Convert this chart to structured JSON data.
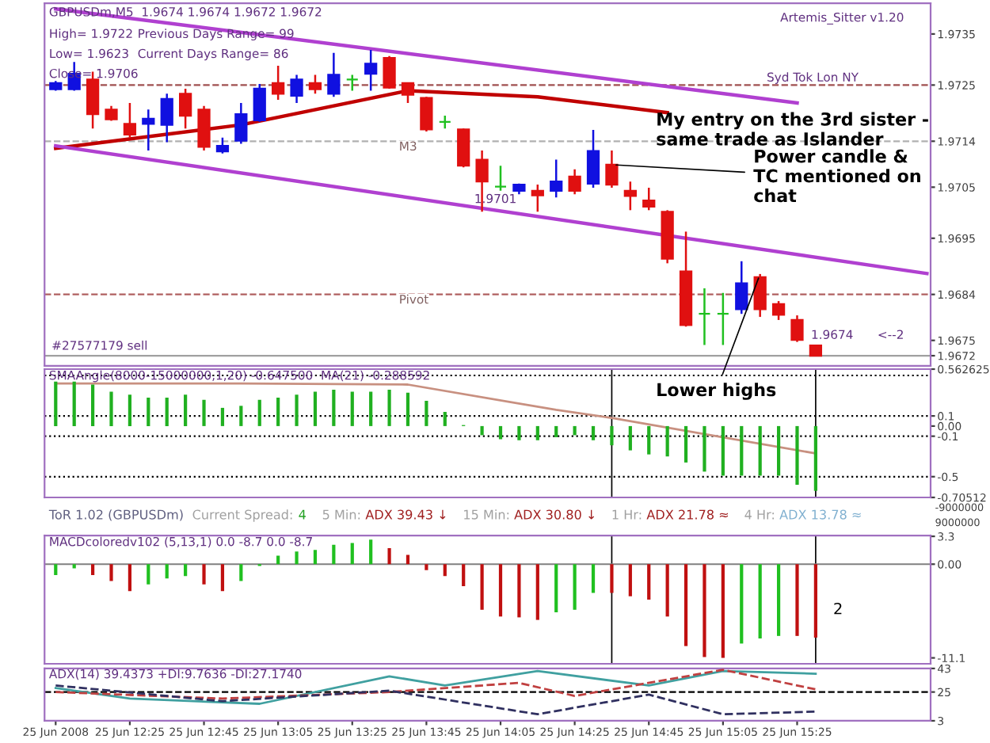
{
  "chart_data": [
    {
      "type": "candlestick",
      "title": "GBPUSDm,M5  1.9674 1.9674 1.9672 1.9672",
      "x": [
        "2008-06-25T12:05",
        "2008-06-25T12:10",
        "2008-06-25T12:15",
        "2008-06-25T12:20",
        "2008-06-25T12:25",
        "2008-06-25T12:30",
        "2008-06-25T12:35",
        "2008-06-25T12:40",
        "2008-06-25T12:45",
        "2008-06-25T12:50",
        "2008-06-25T12:55",
        "2008-06-25T13:00",
        "2008-06-25T13:05",
        "2008-06-25T13:10",
        "2008-06-25T13:15",
        "2008-06-25T13:20",
        "2008-06-25T13:25",
        "2008-06-25T13:30",
        "2008-06-25T13:35",
        "2008-06-25T13:40",
        "2008-06-25T13:45",
        "2008-06-25T13:50",
        "2008-06-25T13:55",
        "2008-06-25T14:00",
        "2008-06-25T14:05",
        "2008-06-25T14:10",
        "2008-06-25T14:15",
        "2008-06-25T14:20",
        "2008-06-25T14:25",
        "2008-06-25T14:30",
        "2008-06-25T14:35",
        "2008-06-25T14:40",
        "2008-06-25T14:45",
        "2008-06-25T14:50",
        "2008-06-25T14:55",
        "2008-06-25T15:00",
        "2008-06-25T15:05",
        "2008-06-25T15:10",
        "2008-06-25T15:15",
        "2008-06-25T15:20",
        "2008-06-25T15:25",
        "2008-06-25T15:30"
      ],
      "ohlc": [
        [
          1.97242,
          1.97258,
          1.97239,
          1.97254
        ],
        [
          1.97242,
          1.97295,
          1.97239,
          1.97272
        ],
        [
          1.97261,
          1.97276,
          1.97165,
          1.97193
        ],
        [
          1.97202,
          1.97209,
          1.9718,
          1.97183
        ],
        [
          1.97174,
          1.97215,
          1.97147,
          1.97153
        ],
        [
          1.97174,
          1.97202,
          1.97122,
          1.97184
        ],
        [
          1.97172,
          1.97233,
          1.97138,
          1.97223
        ],
        [
          1.97233,
          1.97243,
          1.97165,
          1.9719
        ],
        [
          1.97202,
          1.97209,
          1.97122,
          1.97129
        ],
        [
          1.9712,
          1.97147,
          1.97116,
          1.97131
        ],
        [
          1.97141,
          1.97215,
          1.97135,
          1.97193
        ],
        [
          1.97181,
          1.97252,
          1.97178,
          1.97243
        ],
        [
          1.97254,
          1.97288,
          1.97221,
          1.97233
        ],
        [
          1.97229,
          1.9727,
          1.97215,
          1.97261
        ],
        [
          1.97254,
          1.9727,
          1.97233,
          1.97242
        ],
        [
          1.97233,
          1.97313,
          1.97227,
          1.9727
        ],
        [
          1.97261,
          1.9727,
          1.97239,
          1.97261
        ],
        [
          1.97272,
          1.97319,
          1.97239,
          1.97292
        ],
        [
          1.97303,
          1.97307,
          1.97243,
          1.97245
        ],
        [
          1.97254,
          1.97254,
          1.97215,
          1.97231
        ],
        [
          1.97225,
          1.97227,
          1.97159,
          1.97163
        ],
        [
          1.97178,
          1.9719,
          1.97165,
          1.97178
        ],
        [
          1.97163,
          1.97165,
          1.97089,
          1.97092
        ],
        [
          1.97104,
          1.97122,
          1.97002,
          1.97061
        ],
        [
          1.97051,
          1.97092,
          1.97043,
          1.97051
        ],
        [
          1.97043,
          1.97057,
          1.97036,
          1.97055
        ],
        [
          1.97043,
          1.97055,
          1.97002,
          1.97034
        ],
        [
          1.97043,
          1.97104,
          1.9703,
          1.97061
        ],
        [
          1.97071,
          1.97085,
          1.97036,
          1.97043
        ],
        [
          1.97057,
          1.97162,
          1.97049,
          1.97121
        ],
        [
          1.97094,
          1.97122,
          1.97049,
          1.97055
        ],
        [
          1.97043,
          1.97061,
          1.97005,
          1.97033
        ],
        [
          1.97024,
          1.97049,
          1.97005,
          1.97012
        ],
        [
          1.97002,
          1.97005,
          1.96901,
          1.9691
        ],
        [
          1.96885,
          1.96963,
          1.96777,
          1.9678
        ],
        [
          1.96802,
          1.96852,
          1.96741,
          1.96802
        ],
        [
          1.96802,
          1.96843,
          1.96741,
          1.96802
        ],
        [
          1.96811,
          1.96905,
          1.96802,
          1.96862
        ],
        [
          1.96874,
          1.9688,
          1.96796,
          1.96811
        ],
        [
          1.96821,
          1.96827,
          1.9679,
          1.968
        ],
        [
          1.9679,
          1.96799,
          1.96747,
          1.96751
        ],
        [
          1.9674,
          1.9674,
          1.9672,
          1.9672
        ]
      ],
      "colors": [
        "#1010e0",
        "#1010e0",
        "#e01010",
        "#e01010",
        "#e01010",
        "#1010e0",
        "#1010e0",
        "#e01010",
        "#e01010",
        "#1010e0",
        "#1010e0",
        "#1010e0",
        "#e01010",
        "#1010e0",
        "#e01010",
        "#1010e0",
        "#20c020",
        "#1010e0",
        "#e01010",
        "#e01010",
        "#e01010",
        "#20c020",
        "#e01010",
        "#e01010",
        "#20c020",
        "#1010e0",
        "#e01010",
        "#1010e0",
        "#e01010",
        "#1010e0",
        "#e01010",
        "#e01010",
        "#e01010",
        "#e01010",
        "#e01010",
        "#20c020",
        "#20c020",
        "#1010e0",
        "#e01010",
        "#e01010",
        "#e01010",
        "#e01010"
      ],
      "series": [
        {
          "type": "line",
          "color": "#c00000",
          "x": [
            "2008-06-25T12:05",
            "2008-06-25T12:55",
            "2008-06-25T13:40",
            "2008-06-25T14:15",
            "2008-06-25T14:50"
          ],
          "values": [
            1.97126,
            1.97172,
            1.97239,
            1.97227,
            1.97196
          ]
        },
        {
          "type": "line",
          "color": "#b040d0",
          "x": [
            "2008-06-25T12:05",
            "2008-06-25T15:25"
          ],
          "values": [
            1.97399,
            1.97215
          ]
        },
        {
          "type": "line",
          "color": "#b040d0",
          "x": [
            "2008-06-25T12:05",
            "2008-06-25T16:00"
          ],
          "values": [
            1.97131,
            1.96881
          ]
        }
      ],
      "ref_lines": [
        {
          "axis": "y",
          "value": 1.9725,
          "label": null,
          "color": "#a05050",
          "line_style": "dashed"
        },
        {
          "axis": "y",
          "value": 1.9714,
          "label": "M3",
          "color": "#b0b0b0",
          "line_style": "dashed"
        },
        {
          "axis": "y",
          "value": 1.9684,
          "label": "Pivot",
          "color": "#b06060",
          "line_style": "dashed"
        },
        {
          "axis": "y",
          "value": 1.9672,
          "label": null,
          "color": "#a0a0a0",
          "line_style": "solid"
        }
      ],
      "annotations": [
        "High= 1.9722",
        "Previous Days Range= 99",
        "Low= 1.9623",
        "Current Days Range= 86",
        "Close= 1.9706",
        "Artemis_Sitter v1.20",
        "Syd Tok Lon NY",
        "#27577179 sell",
        "My entry on the 3rd sister -\nsame trade as Islander",
        {
          "text": "Power candle &\nTC mentioned on\nchat",
          "x": "2008-06-25T14:35",
          "y": 1.97094
        },
        {
          "text": "Lower highs",
          "x": "2008-06-25T15:15",
          "y": 1.9688
        },
        "1.9701",
        "1.9674",
        "<--2"
      ],
      "xlim": [
        "2008-06-25T12:02",
        "2008-06-25T16:01"
      ],
      "ylim": [
        1.967,
        1.9741
      ],
      "yticks": [
        1.9735,
        1.9725,
        {
          "value": 1.9714,
          "label": "1.9714"
        },
        1.9705,
        1.9695,
        {
          "value": 1.9684,
          "label": "1.9684"
        },
        1.9675,
        {
          "value": 1.9672,
          "label": "1.9672"
        }
      ],
      "tick_labels": "y"
    },
    {
      "type": "bar",
      "title": "SMAAngle(8000-15000000,1,20) -0.647500  MA(21) -0.288592",
      "color": "#20b020",
      "x": [
        "2008-06-25T12:05",
        "2008-06-25T12:10",
        "2008-06-25T12:15",
        "2008-06-25T12:20",
        "2008-06-25T12:25",
        "2008-06-25T12:30",
        "2008-06-25T12:35",
        "2008-06-25T12:40",
        "2008-06-25T12:45",
        "2008-06-25T12:50",
        "2008-06-25T12:55",
        "2008-06-25T13:00",
        "2008-06-25T13:05",
        "2008-06-25T13:10",
        "2008-06-25T13:15",
        "2008-06-25T13:20",
        "2008-06-25T13:25",
        "2008-06-25T13:30",
        "2008-06-25T13:35",
        "2008-06-25T13:40",
        "2008-06-25T13:45",
        "2008-06-25T13:50",
        "2008-06-25T13:55",
        "2008-06-25T14:00",
        "2008-06-25T14:05",
        "2008-06-25T14:10",
        "2008-06-25T14:15",
        "2008-06-25T14:20",
        "2008-06-25T14:25",
        "2008-06-25T14:30",
        "2008-06-25T14:35",
        "2008-06-25T14:40",
        "2008-06-25T14:45",
        "2008-06-25T14:50",
        "2008-06-25T14:55",
        "2008-06-25T15:00",
        "2008-06-25T15:05",
        "2008-06-25T15:10",
        "2008-06-25T15:15",
        "2008-06-25T15:20",
        "2008-06-25T15:25",
        "2008-06-25T15:30"
      ],
      "values": [
        0.44,
        0.44,
        0.41,
        0.34,
        0.31,
        0.28,
        0.28,
        0.31,
        0.26,
        0.18,
        0.2,
        0.26,
        0.28,
        0.31,
        0.34,
        0.36,
        0.34,
        0.34,
        0.36,
        0.33,
        0.25,
        0.14,
        0.01,
        -0.09,
        -0.13,
        -0.14,
        -0.14,
        -0.11,
        -0.09,
        -0.14,
        -0.19,
        -0.24,
        -0.28,
        -0.3,
        -0.36,
        -0.45,
        -0.49,
        -0.49,
        -0.49,
        -0.49,
        -0.58,
        -0.64
      ],
      "series": [
        {
          "type": "line",
          "color": "#c89080",
          "x": [
            "2008-06-25T12:05",
            "2008-06-25T12:55",
            "2008-06-25T13:40",
            "2008-06-25T14:20",
            "2008-06-25T14:35",
            "2008-06-25T15:30"
          ],
          "values": [
            0.42,
            0.42,
            0.41,
            0.16,
            0.08,
            -0.27
          ]
        }
      ],
      "ref_lines": [
        {
          "axis": "y",
          "value": 0.5,
          "label": null,
          "color": "#000000",
          "line_style": "dotted"
        },
        {
          "axis": "y",
          "value": 0.1,
          "label": null,
          "color": "#000000",
          "line_style": "dotted"
        },
        {
          "axis": "y",
          "value": -0.1,
          "label": null,
          "color": "#000000",
          "line_style": "dotted"
        },
        {
          "axis": "y",
          "value": -0.5,
          "label": null,
          "color": "#000000",
          "line_style": "dotted"
        },
        {
          "axis": "x",
          "value": "2008-06-25T14:35",
          "label": null,
          "color": "#000000",
          "line_style": "solid"
        },
        {
          "axis": "x",
          "value": "2008-06-25T15:30",
          "label": null,
          "color": "#000000",
          "line_style": "solid"
        }
      ],
      "xlim": [
        "2008-06-25T12:02",
        "2008-06-25T16:01"
      ],
      "ylim": [
        -0.70512,
        0.562625
      ],
      "yticks": [
        0.562625,
        0.1,
        {
          "value": 0,
          "label": "0.00"
        },
        -0.1,
        -0.5,
        -0.70512
      ],
      "tick_labels": "y"
    },
    {
      "type": "other",
      "annotations": [
        "ToR 1.02 (GBPUSDm)",
        "Current Spread:",
        "4",
        "5 Min:",
        "ADX 39.43 ↓",
        "15 Min:",
        "ADX 30.80 ↓",
        "1 Hr:",
        "ADX 21.78 ≈",
        "4 Hr:",
        "ADX 13.78 ≈",
        "-9000000",
        "9000000"
      ]
    },
    {
      "type": "bar",
      "title": "MACDcoloredv102 (5,13,1) 0.0 -8.7 0.0 -8.7",
      "x": [
        "2008-06-25T12:05",
        "2008-06-25T12:10",
        "2008-06-25T12:15",
        "2008-06-25T12:20",
        "2008-06-25T12:25",
        "2008-06-25T12:30",
        "2008-06-25T12:35",
        "2008-06-25T12:40",
        "2008-06-25T12:45",
        "2008-06-25T12:50",
        "2008-06-25T12:55",
        "2008-06-25T13:00",
        "2008-06-25T13:05",
        "2008-06-25T13:10",
        "2008-06-25T13:15",
        "2008-06-25T13:20",
        "2008-06-25T13:25",
        "2008-06-25T13:30",
        "2008-06-25T13:35",
        "2008-06-25T13:40",
        "2008-06-25T13:45",
        "2008-06-25T13:50",
        "2008-06-25T13:55",
        "2008-06-25T14:00",
        "2008-06-25T14:05",
        "2008-06-25T14:10",
        "2008-06-25T14:15",
        "2008-06-25T14:20",
        "2008-06-25T14:25",
        "2008-06-25T14:30",
        "2008-06-25T14:35",
        "2008-06-25T14:40",
        "2008-06-25T14:45",
        "2008-06-25T14:50",
        "2008-06-25T14:55",
        "2008-06-25T15:00",
        "2008-06-25T15:05",
        "2008-06-25T15:10",
        "2008-06-25T15:15",
        "2008-06-25T15:20",
        "2008-06-25T15:25",
        "2008-06-25T15:30"
      ],
      "values": [
        -1.3,
        -0.5,
        -1.3,
        -2.0,
        -3.2,
        -2.4,
        -1.7,
        -1.4,
        -2.4,
        -3.2,
        -2.0,
        -0.2,
        1.0,
        1.5,
        1.7,
        2.3,
        2.5,
        2.9,
        1.9,
        1.1,
        -0.7,
        -1.4,
        -2.6,
        -5.4,
        -6.2,
        -6.3,
        -6.6,
        -5.7,
        -5.4,
        -3.4,
        -3.4,
        -3.8,
        -4.2,
        -6.2,
        -9.7,
        -11.0,
        -11.1,
        -9.4,
        -8.8,
        -8.5,
        -8.5,
        -8.7
      ],
      "colors": [
        "#20c020",
        "#20c020",
        "#c01010",
        "#c01010",
        "#c01010",
        "#20c020",
        "#20c020",
        "#20c020",
        "#c01010",
        "#c01010",
        "#20c020",
        "#20c020",
        "#20c020",
        "#20c020",
        "#20c020",
        "#20c020",
        "#20c020",
        "#20c020",
        "#c01010",
        "#c01010",
        "#c01010",
        "#c01010",
        "#c01010",
        "#c01010",
        "#c01010",
        "#c01010",
        "#c01010",
        "#20c020",
        "#20c020",
        "#20c020",
        "#c01010",
        "#c01010",
        "#c01010",
        "#c01010",
        "#c01010",
        "#c01010",
        "#c01010",
        "#20c020",
        "#20c020",
        "#20c020",
        "#c01010",
        "#c01010"
      ],
      "annotations": [
        "2"
      ],
      "ref_lines": [
        {
          "axis": "y",
          "value": 0,
          "label": null,
          "color": "#808080",
          "line_style": "solid"
        },
        {
          "axis": "x",
          "value": "2008-06-25T14:35",
          "label": null,
          "color": "#000000",
          "line_style": "solid"
        },
        {
          "axis": "x",
          "value": "2008-06-25T15:30",
          "label": null,
          "color": "#000000",
          "line_style": "solid"
        }
      ],
      "xlim": [
        "2008-06-25T12:02",
        "2008-06-25T16:01"
      ],
      "ylim": [
        -11.8,
        3.4
      ],
      "yticks": [
        3.3,
        {
          "value": 0,
          "label": "0.00"
        },
        -11.1
      ],
      "tick_labels": "y"
    },
    {
      "type": "line",
      "title": "ADX(14) 39.4373 +DI:9.7636 -DI:27.1740",
      "series": [
        {
          "color": "#40a0a0",
          "line_style": "solid",
          "x": [
            "2008-06-25T12:05",
            "2008-06-25T12:25",
            "2008-06-25T13:00",
            "2008-06-25T13:35",
            "2008-06-25T13:50",
            "2008-06-25T14:15",
            "2008-06-25T14:45",
            "2008-06-25T15:05",
            "2008-06-25T15:30"
          ],
          "values": [
            28,
            20,
            16,
            37,
            30,
            41,
            30,
            41,
            39
          ]
        },
        {
          "color": "#c04040",
          "line_style": "dashed",
          "x": [
            "2008-06-25T12:05",
            "2008-06-25T12:50",
            "2008-06-25T13:35",
            "2008-06-25T14:10",
            "2008-06-25T14:25",
            "2008-06-25T15:05",
            "2008-06-25T15:30"
          ],
          "values": [
            25,
            20,
            25,
            32,
            22,
            42,
            27
          ]
        },
        {
          "color": "#303060",
          "line_style": "dashed",
          "x": [
            "2008-06-25T12:05",
            "2008-06-25T12:50",
            "2008-06-25T13:35",
            "2008-06-25T14:15",
            "2008-06-25T14:45",
            "2008-06-25T15:05",
            "2008-06-25T15:30"
          ],
          "values": [
            30,
            18,
            26,
            8,
            23,
            8,
            10
          ]
        }
      ],
      "ref_lines": [
        {
          "axis": "y",
          "value": 25,
          "label": null,
          "color": "#000000",
          "line_style": "dashed"
        }
      ],
      "xlim": [
        "2008-06-25T12:02",
        "2008-06-25T16:01"
      ],
      "ylim": [
        3,
        43
      ],
      "xticks": [
        {
          "value": "2008-06-25T12:05",
          "label": "25 Jun 2008"
        },
        {
          "value": "2008-06-25T12:25",
          "label": "25 Jun 12:25"
        },
        {
          "value": "2008-06-25T12:45",
          "label": "25 Jun 12:45"
        },
        {
          "value": "2008-06-25T13:05",
          "label": "25 Jun 13:05"
        },
        {
          "value": "2008-06-25T13:25",
          "label": "25 Jun 13:25"
        },
        {
          "value": "2008-06-25T13:45",
          "label": "25 Jun 13:45"
        },
        {
          "value": "2008-06-25T14:05",
          "label": "25 Jun 14:05"
        },
        {
          "value": "2008-06-25T14:25",
          "label": "25 Jun 14:25"
        },
        {
          "value": "2008-06-25T14:45",
          "label": "25 Jun 14:45"
        },
        {
          "value": "2008-06-25T15:05",
          "label": "25 Jun 15:05"
        },
        {
          "value": "2008-06-25T15:25",
          "label": "25 Jun 15:25"
        }
      ],
      "yticks": [
        43,
        25,
        3
      ]
    }
  ]
}
